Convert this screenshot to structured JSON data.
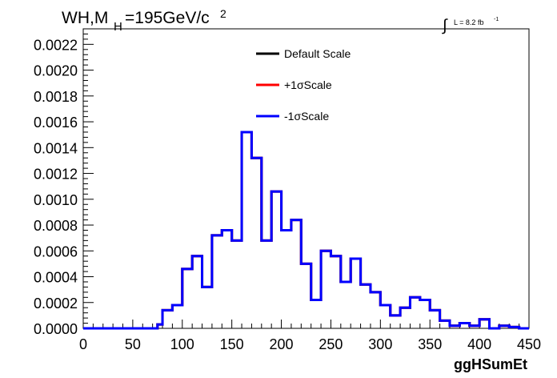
{
  "chart_data": {
    "type": "line",
    "title_main": "WH,M",
    "title_sub": "H",
    "title_rest": "=195GeV/c",
    "title_sup": "2",
    "lumi_integral_sign": "∫",
    "lumi_text": "L = 8.2 fb",
    "lumi_sup": "-1",
    "xlabel": "ggHSumEt",
    "ylabel": "",
    "xlim": [
      0,
      450
    ],
    "ylim": [
      0,
      0.00232
    ],
    "x_ticks": [
      0,
      50,
      100,
      150,
      200,
      250,
      300,
      350,
      400,
      450
    ],
    "x_tick_labels": [
      "0",
      "50",
      "100",
      "150",
      "200",
      "250",
      "300",
      "350",
      "400",
      "450"
    ],
    "y_ticks": [
      0,
      0.0002,
      0.0004,
      0.0006,
      0.0008,
      0.001,
      0.0012,
      0.0014,
      0.0016,
      0.0018,
      0.002,
      0.0022
    ],
    "y_tick_labels": [
      "0.0000",
      "0.0002",
      "0.0004",
      "0.0006",
      "0.0008",
      "0.0010",
      "0.0012",
      "0.0014",
      "0.0016",
      "0.0018",
      "0.0020",
      "0.0022"
    ],
    "grid": false,
    "legend_position": "top-center",
    "bin_edges": [
      0,
      10,
      20,
      30,
      40,
      50,
      60,
      70,
      75,
      80,
      90,
      100,
      110,
      120,
      130,
      140,
      150,
      160,
      170,
      180,
      190,
      200,
      210,
      220,
      230,
      240,
      250,
      260,
      270,
      280,
      290,
      300,
      310,
      320,
      330,
      340,
      350,
      360,
      370,
      380,
      390,
      400,
      410,
      420,
      430,
      440,
      450
    ],
    "series": [
      {
        "name": "Default Scale",
        "color": "#000000",
        "values": [
          0,
          0,
          0,
          0,
          0,
          0,
          0,
          0,
          3e-05,
          0.00014,
          0.00018,
          0.00046,
          0.00056,
          0.00032,
          0.00072,
          0.00076,
          0.00068,
          0.00152,
          0.00132,
          0.00068,
          0.00106,
          0.00076,
          0.00084,
          0.0005,
          0.00022,
          0.0006,
          0.00056,
          0.00036,
          0.00054,
          0.00034,
          0.00028,
          0.00018,
          0.0001,
          0.00016,
          0.00024,
          0.00022,
          0.00014,
          6e-05,
          2e-05,
          4e-05,
          2e-05,
          7e-05,
          0,
          2e-05,
          1e-05,
          0
        ]
      },
      {
        "name": "+1σScale",
        "color": "#ff0000",
        "values": [
          0,
          0,
          0,
          0,
          0,
          0,
          0,
          0,
          3e-05,
          0.00014,
          0.00018,
          0.00046,
          0.00056,
          0.00032,
          0.00072,
          0.00076,
          0.00068,
          0.00152,
          0.00132,
          0.00068,
          0.00106,
          0.00076,
          0.00084,
          0.0005,
          0.00022,
          0.0006,
          0.00056,
          0.00036,
          0.00054,
          0.00034,
          0.00028,
          0.00018,
          0.0001,
          0.00016,
          0.00024,
          0.00022,
          0.00014,
          6e-05,
          2e-05,
          4e-05,
          2e-05,
          7e-05,
          0,
          2e-05,
          1e-05,
          0
        ]
      },
      {
        "name": "-1σScale",
        "color": "#0000ff",
        "values": [
          0,
          0,
          0,
          0,
          0,
          0,
          0,
          0,
          3e-05,
          0.00014,
          0.00018,
          0.00046,
          0.00056,
          0.00032,
          0.00072,
          0.00076,
          0.00068,
          0.00152,
          0.00132,
          0.00068,
          0.00106,
          0.00076,
          0.00084,
          0.0005,
          0.00022,
          0.0006,
          0.00056,
          0.00036,
          0.00054,
          0.00034,
          0.00028,
          0.00018,
          0.0001,
          0.00016,
          0.00024,
          0.00022,
          0.00014,
          6e-05,
          2e-05,
          4e-05,
          2e-05,
          7e-05,
          0,
          2e-05,
          1e-05,
          0
        ]
      }
    ]
  }
}
